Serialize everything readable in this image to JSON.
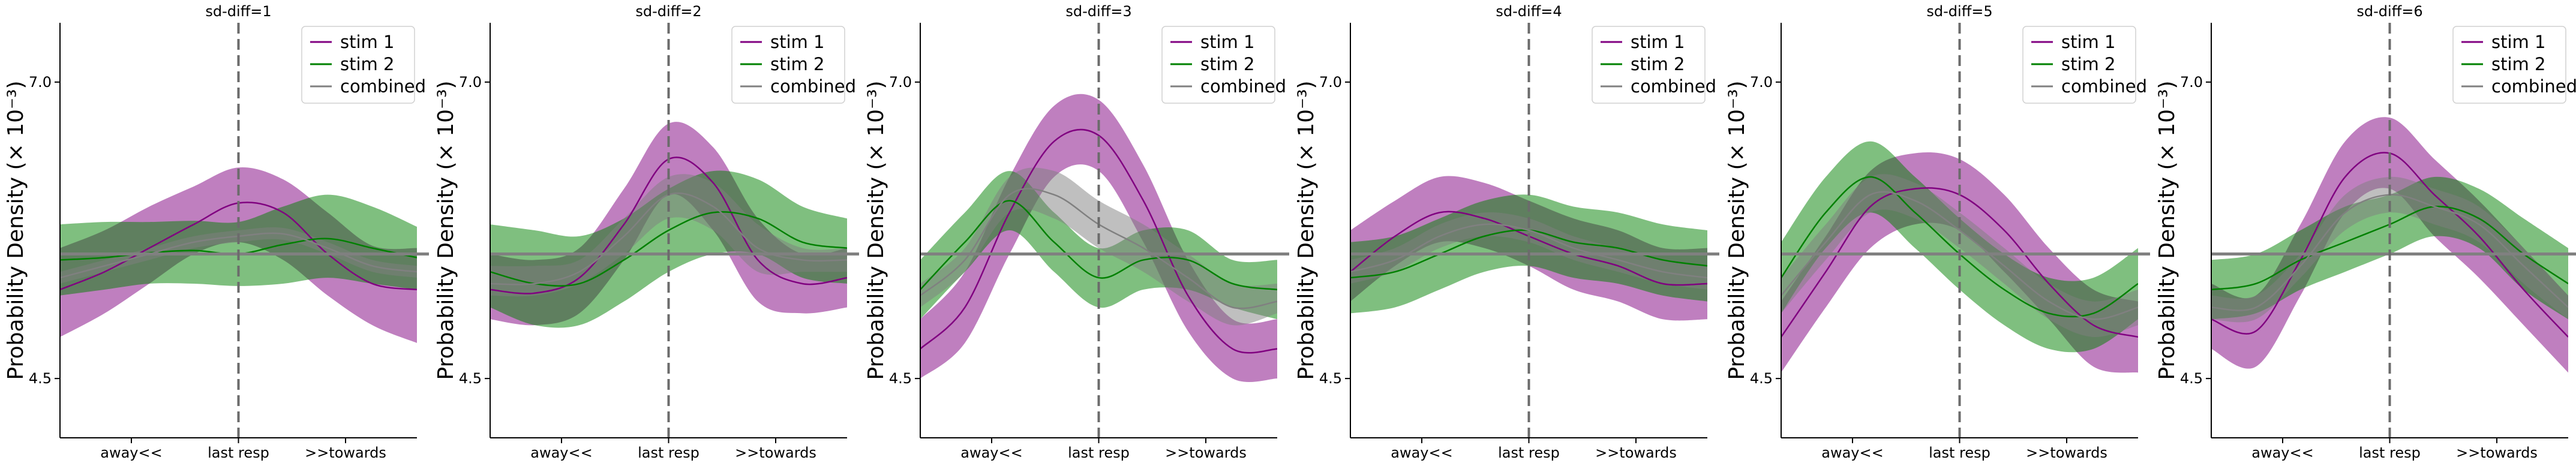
{
  "chart_data": [
    {
      "type": "line",
      "title": "sd-diff=1",
      "xlabel": "",
      "ylabel": "Probability Density (× 10⁻³)",
      "x_tick_labels": [
        "away<<",
        "last resp",
        ">>towards"
      ],
      "x_tick_positions": [
        -0.6,
        0.0,
        0.6
      ],
      "xlim": [
        -1.0,
        1.0
      ],
      "y_ticks": [
        4.5,
        7.0
      ],
      "ylim": [
        4.0,
        7.5
      ],
      "reference_vline_x": 0.0,
      "reference_hline_y": 5.55,
      "legend": {
        "position": "top-right",
        "entries": [
          "stim 1",
          "stim 2",
          "combined"
        ]
      },
      "x": [
        -1.0,
        -0.75,
        -0.5,
        -0.25,
        0.0,
        0.25,
        0.5,
        0.75,
        1.0
      ],
      "series": [
        {
          "name": "stim 1",
          "color": "#800080",
          "values": [
            5.25,
            5.4,
            5.6,
            5.8,
            5.98,
            5.9,
            5.55,
            5.3,
            5.25
          ],
          "lower": [
            4.85,
            5.05,
            5.3,
            5.55,
            5.65,
            5.5,
            5.2,
            4.95,
            4.8
          ],
          "upper": [
            5.6,
            5.75,
            5.95,
            6.12,
            6.28,
            6.18,
            5.9,
            5.62,
            5.6
          ]
        },
        {
          "name": "stim 2",
          "color": "#008000",
          "values": [
            5.5,
            5.52,
            5.56,
            5.58,
            5.55,
            5.63,
            5.68,
            5.6,
            5.52
          ],
          "lower": [
            5.2,
            5.25,
            5.3,
            5.3,
            5.28,
            5.3,
            5.35,
            5.3,
            5.25
          ],
          "upper": [
            5.8,
            5.82,
            5.82,
            5.83,
            5.82,
            5.95,
            6.05,
            5.95,
            5.78
          ]
        },
        {
          "name": "combined",
          "color": "#808080",
          "values": [
            5.35,
            5.45,
            5.55,
            5.65,
            5.7,
            5.72,
            5.6,
            5.45,
            5.4
          ],
          "lower": [
            5.3,
            5.4,
            5.5,
            5.6,
            5.65,
            5.67,
            5.55,
            5.4,
            5.35
          ],
          "upper": [
            5.4,
            5.5,
            5.6,
            5.7,
            5.75,
            5.77,
            5.65,
            5.5,
            5.45
          ]
        }
      ]
    },
    {
      "type": "line",
      "title": "sd-diff=2",
      "xlabel": "",
      "ylabel": "Probability Density (× 10⁻³)",
      "x_tick_labels": [
        "away<<",
        "last resp",
        ">>towards"
      ],
      "x_tick_positions": [
        -0.6,
        0.0,
        0.6
      ],
      "xlim": [
        -1.0,
        1.0
      ],
      "y_ticks": [
        4.5,
        7.0
      ],
      "ylim": [
        4.0,
        7.5
      ],
      "reference_vline_x": 0.0,
      "reference_hline_y": 5.55,
      "legend": {
        "position": "top-right",
        "entries": [
          "stim 1",
          "stim 2",
          "combined"
        ]
      },
      "x": [
        -1.0,
        -0.75,
        -0.5,
        -0.25,
        0.0,
        0.25,
        0.5,
        0.75,
        1.0
      ],
      "series": [
        {
          "name": "stim 1",
          "color": "#800080",
          "values": [
            5.25,
            5.22,
            5.35,
            5.8,
            6.35,
            6.15,
            5.5,
            5.3,
            5.35
          ],
          "lower": [
            5.0,
            4.95,
            5.05,
            5.5,
            6.05,
            5.75,
            5.15,
            5.05,
            5.1
          ],
          "upper": [
            5.55,
            5.5,
            5.6,
            6.1,
            6.65,
            6.45,
            5.85,
            5.55,
            5.6
          ]
        },
        {
          "name": "stim 2",
          "color": "#008000",
          "values": [
            5.4,
            5.3,
            5.3,
            5.5,
            5.75,
            5.9,
            5.85,
            5.65,
            5.6
          ],
          "lower": [
            5.1,
            4.95,
            4.95,
            5.15,
            5.4,
            5.55,
            5.55,
            5.35,
            5.3
          ],
          "upper": [
            5.8,
            5.75,
            5.7,
            5.85,
            6.1,
            6.25,
            6.18,
            5.95,
            5.85
          ]
        },
        {
          "name": "combined",
          "color": "#808080",
          "values": [
            5.3,
            5.3,
            5.4,
            5.7,
            6.05,
            5.95,
            5.6,
            5.5,
            5.5
          ],
          "lower": [
            5.2,
            5.2,
            5.3,
            5.55,
            5.85,
            5.75,
            5.4,
            5.4,
            5.4
          ],
          "upper": [
            5.45,
            5.45,
            5.5,
            5.85,
            6.2,
            6.15,
            5.8,
            5.6,
            5.6
          ]
        }
      ]
    },
    {
      "type": "line",
      "title": "sd-diff=3",
      "xlabel": "",
      "ylabel": "Probability Density (× 10⁻³)",
      "x_tick_labels": [
        "away<<",
        "last resp",
        ">>towards"
      ],
      "x_tick_positions": [
        -0.6,
        0.0,
        0.6
      ],
      "xlim": [
        -1.0,
        1.0
      ],
      "y_ticks": [
        4.5,
        7.0
      ],
      "ylim": [
        4.0,
        7.5
      ],
      "reference_vline_x": 0.0,
      "reference_hline_y": 5.55,
      "legend": {
        "position": "top-right",
        "entries": [
          "stim 1",
          "stim 2",
          "combined"
        ]
      },
      "x": [
        -1.0,
        -0.75,
        -0.5,
        -0.25,
        0.0,
        0.25,
        0.5,
        0.75,
        1.0
      ],
      "series": [
        {
          "name": "stim 1",
          "color": "#800080",
          "values": [
            4.75,
            5.1,
            5.9,
            6.5,
            6.55,
            6.0,
            5.2,
            4.75,
            4.75
          ],
          "lower": [
            4.5,
            4.8,
            5.55,
            6.2,
            6.25,
            5.65,
            4.9,
            4.5,
            4.5
          ],
          "upper": [
            5.0,
            5.4,
            6.2,
            6.8,
            6.85,
            6.3,
            5.5,
            5.0,
            5.0
          ]
        },
        {
          "name": "stim 2",
          "color": "#008000",
          "values": [
            5.25,
            5.65,
            6.0,
            5.65,
            5.35,
            5.5,
            5.5,
            5.3,
            5.25
          ],
          "lower": [
            5.0,
            5.4,
            5.75,
            5.4,
            5.1,
            5.25,
            5.25,
            5.1,
            5.0
          ],
          "upper": [
            5.5,
            5.9,
            6.25,
            5.9,
            5.6,
            5.75,
            5.75,
            5.5,
            5.5
          ]
        },
        {
          "name": "combined",
          "color": "#808080",
          "values": [
            5.2,
            5.5,
            6.05,
            6.05,
            5.8,
            5.6,
            5.35,
            5.1,
            5.15
          ],
          "lower": [
            5.1,
            5.4,
            5.9,
            5.85,
            5.6,
            5.4,
            5.15,
            4.95,
            5.05
          ],
          "upper": [
            5.3,
            5.6,
            6.2,
            6.25,
            6.0,
            5.8,
            5.55,
            5.3,
            5.3
          ]
        }
      ]
    },
    {
      "type": "line",
      "title": "sd-diff=4",
      "xlabel": "",
      "ylabel": "Probability Density (× 10⁻³)",
      "x_tick_labels": [
        "away<<",
        "last resp",
        ">>towards"
      ],
      "x_tick_positions": [
        -0.6,
        0.0,
        0.6
      ],
      "xlim": [
        -1.0,
        1.0
      ],
      "y_ticks": [
        4.5,
        7.0
      ],
      "ylim": [
        4.0,
        7.5
      ],
      "reference_vline_x": 0.0,
      "reference_hline_y": 5.55,
      "legend": {
        "position": "top-right",
        "entries": [
          "stim 1",
          "stim 2",
          "combined"
        ]
      },
      "x": [
        -1.0,
        -0.75,
        -0.5,
        -0.25,
        0.0,
        0.25,
        0.5,
        0.75,
        1.0
      ],
      "series": [
        {
          "name": "stim 1",
          "color": "#800080",
          "values": [
            5.4,
            5.7,
            5.9,
            5.85,
            5.7,
            5.55,
            5.45,
            5.3,
            5.3
          ],
          "lower": [
            5.15,
            5.45,
            5.65,
            5.6,
            5.45,
            5.25,
            5.15,
            5.0,
            5.0
          ],
          "upper": [
            5.75,
            6.0,
            6.2,
            6.15,
            6.0,
            5.85,
            5.75,
            5.6,
            5.6
          ]
        },
        {
          "name": "stim 2",
          "color": "#008000",
          "values": [
            5.35,
            5.4,
            5.55,
            5.7,
            5.75,
            5.65,
            5.6,
            5.5,
            5.45
          ],
          "lower": [
            5.05,
            5.1,
            5.25,
            5.4,
            5.45,
            5.35,
            5.3,
            5.2,
            5.15
          ],
          "upper": [
            5.65,
            5.7,
            5.85,
            6.0,
            6.05,
            5.95,
            5.9,
            5.8,
            5.75
          ]
        },
        {
          "name": "combined",
          "color": "#808080",
          "values": [
            5.4,
            5.5,
            5.7,
            5.8,
            5.75,
            5.6,
            5.5,
            5.4,
            5.35
          ],
          "lower": [
            5.3,
            5.4,
            5.6,
            5.7,
            5.65,
            5.5,
            5.4,
            5.3,
            5.25
          ],
          "upper": [
            5.5,
            5.6,
            5.8,
            5.9,
            5.85,
            5.7,
            5.6,
            5.5,
            5.45
          ]
        }
      ]
    },
    {
      "type": "line",
      "title": "sd-diff=5",
      "xlabel": "",
      "ylabel": "Probability Density (× 10⁻³)",
      "x_tick_labels": [
        "away<<",
        "last resp",
        ">>towards"
      ],
      "x_tick_positions": [
        -0.6,
        0.0,
        0.6
      ],
      "xlim": [
        -1.0,
        1.0
      ],
      "y_ticks": [
        4.5,
        7.0
      ],
      "ylim": [
        4.0,
        7.5
      ],
      "reference_vline_x": 0.0,
      "reference_hline_y": 5.55,
      "legend": {
        "position": "top-right",
        "entries": [
          "stim 1",
          "stim 2",
          "combined"
        ]
      },
      "x": [
        -1.0,
        -0.75,
        -0.5,
        -0.25,
        0.0,
        0.25,
        0.5,
        0.75,
        1.0
      ],
      "series": [
        {
          "name": "stim 1",
          "color": "#800080",
          "values": [
            4.85,
            5.4,
            5.95,
            6.1,
            6.05,
            5.75,
            5.3,
            4.95,
            4.85
          ],
          "lower": [
            4.55,
            5.1,
            5.6,
            5.8,
            5.75,
            5.4,
            5.0,
            4.6,
            4.55
          ],
          "upper": [
            5.15,
            5.7,
            6.25,
            6.4,
            6.35,
            6.05,
            5.6,
            5.25,
            5.15
          ]
        },
        {
          "name": "stim 2",
          "color": "#008000",
          "values": [
            5.35,
            5.9,
            6.2,
            5.9,
            5.55,
            5.25,
            5.05,
            5.05,
            5.3
          ],
          "lower": [
            5.05,
            5.6,
            5.9,
            5.6,
            5.25,
            4.95,
            4.75,
            4.75,
            5.0
          ],
          "upper": [
            5.65,
            6.2,
            6.5,
            6.2,
            5.85,
            5.55,
            5.35,
            5.35,
            5.6
          ]
        },
        {
          "name": "combined",
          "color": "#808080",
          "values": [
            5.2,
            5.65,
            6.05,
            6.0,
            5.75,
            5.45,
            5.15,
            5.0,
            5.1
          ],
          "lower": [
            5.05,
            5.5,
            5.9,
            5.85,
            5.6,
            5.3,
            5.0,
            4.85,
            4.95
          ],
          "upper": [
            5.35,
            5.8,
            6.2,
            6.15,
            5.9,
            5.6,
            5.3,
            5.15,
            5.25
          ]
        }
      ]
    },
    {
      "type": "line",
      "title": "sd-diff=6",
      "xlabel": "",
      "ylabel": "Probability Density (× 10⁻³)",
      "x_tick_labels": [
        "away<<",
        "last resp",
        ">>towards"
      ],
      "x_tick_positions": [
        -0.6,
        0.0,
        0.6
      ],
      "xlim": [
        -1.0,
        1.0
      ],
      "y_ticks": [
        4.5,
        7.0
      ],
      "ylim": [
        4.0,
        7.5
      ],
      "reference_vline_x": 0.0,
      "reference_hline_y": 5.55,
      "legend": {
        "position": "top-right",
        "entries": [
          "stim 1",
          "stim 2",
          "combined"
        ]
      },
      "x": [
        -1.0,
        -0.75,
        -0.5,
        -0.25,
        0.0,
        0.25,
        0.5,
        0.75,
        1.0
      ],
      "series": [
        {
          "name": "stim 1",
          "color": "#800080",
          "values": [
            5.0,
            4.9,
            5.5,
            6.2,
            6.4,
            6.05,
            5.7,
            5.25,
            4.85
          ],
          "lower": [
            4.75,
            4.6,
            5.2,
            5.9,
            6.1,
            5.7,
            5.35,
            4.95,
            4.55
          ],
          "upper": [
            5.3,
            5.2,
            5.8,
            6.5,
            6.7,
            6.35,
            6.0,
            5.6,
            5.2
          ]
        },
        {
          "name": "stim 2",
          "color": "#008000",
          "values": [
            5.25,
            5.3,
            5.5,
            5.65,
            5.8,
            5.95,
            5.85,
            5.55,
            5.3
          ],
          "lower": [
            5.0,
            5.05,
            5.25,
            5.4,
            5.55,
            5.7,
            5.6,
            5.25,
            5.0
          ],
          "upper": [
            5.5,
            5.55,
            5.75,
            5.95,
            6.05,
            6.2,
            6.1,
            5.85,
            5.6
          ]
        },
        {
          "name": "combined",
          "color": "#808080",
          "values": [
            5.1,
            5.1,
            5.45,
            5.9,
            6.05,
            5.95,
            5.8,
            5.45,
            5.1
          ],
          "lower": [
            5.0,
            5.0,
            5.35,
            5.75,
            5.9,
            5.8,
            5.65,
            5.3,
            5.0
          ],
          "upper": [
            5.2,
            5.2,
            5.55,
            6.05,
            6.2,
            6.1,
            5.95,
            5.6,
            5.2
          ]
        }
      ]
    }
  ]
}
